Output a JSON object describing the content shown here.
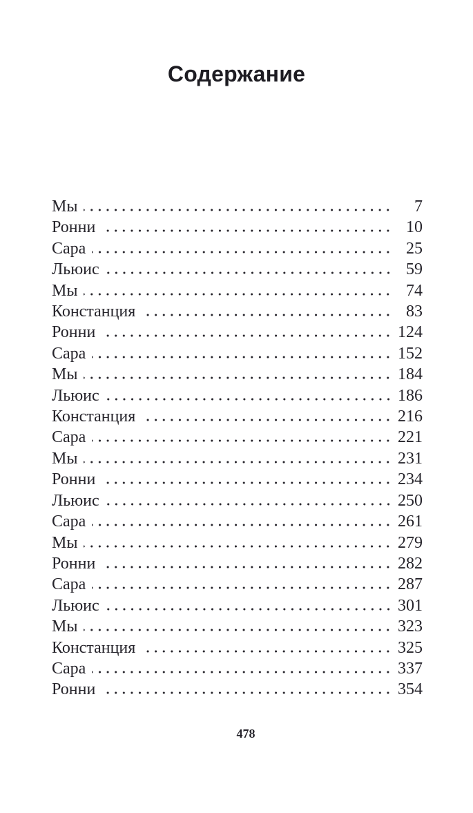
{
  "page": {
    "title": "Содержание",
    "footer_page_number": "478"
  },
  "toc": {
    "entries": [
      {
        "label": "Мы",
        "page": "7"
      },
      {
        "label": "Ронни",
        "page": "10"
      },
      {
        "label": "Сара",
        "page": "25"
      },
      {
        "label": "Льюис",
        "page": "59"
      },
      {
        "label": "Мы",
        "page": "74"
      },
      {
        "label": "Констанция",
        "page": "83"
      },
      {
        "label": "Ронни",
        "page": "124"
      },
      {
        "label": "Сара",
        "page": "152"
      },
      {
        "label": "Мы",
        "page": "184"
      },
      {
        "label": "Льюис",
        "page": "186"
      },
      {
        "label": "Констанция",
        "page": "216"
      },
      {
        "label": "Сара",
        "page": "221"
      },
      {
        "label": "Мы",
        "page": "231"
      },
      {
        "label": "Ронни",
        "page": "234"
      },
      {
        "label": "Льюис",
        "page": "250"
      },
      {
        "label": "Сара",
        "page": "261"
      },
      {
        "label": "Мы",
        "page": "279"
      },
      {
        "label": "Ронни",
        "page": "282"
      },
      {
        "label": "Сара",
        "page": "287"
      },
      {
        "label": "Льюис",
        "page": "301"
      },
      {
        "label": "Мы",
        "page": "323"
      },
      {
        "label": "Констанция",
        "page": "325"
      },
      {
        "label": "Сара",
        "page": "337"
      },
      {
        "label": "Ронни",
        "page": "354"
      }
    ]
  },
  "colors": {
    "text": "#26242b",
    "title": "#1d1c22",
    "background": "#ffffff"
  }
}
